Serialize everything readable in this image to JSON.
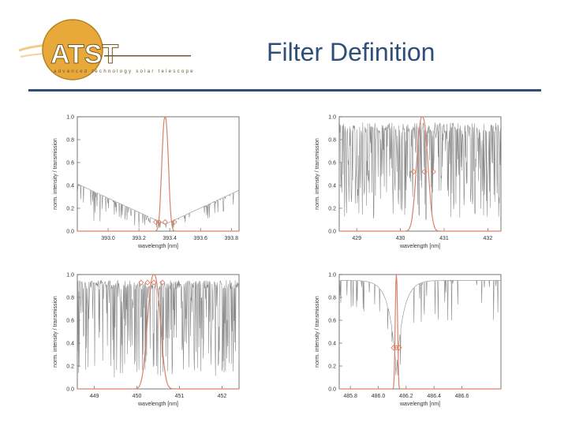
{
  "slide": {
    "title": "Filter Definition"
  },
  "logo": {
    "name": "ATST",
    "tagline": "advanced technology solar telescope"
  },
  "colors": {
    "title": "#2f4e7a",
    "rule": "#2f4e7a",
    "spectrum": "#8c8c8c",
    "filter": "#d9826a",
    "logo_gold": "#e8a83a",
    "logo_text": "#6b5a2a"
  },
  "chart_data": [
    {
      "type": "line",
      "panel": "top-left",
      "xlabel": "wavelength [nm]",
      "ylabel": "norm. intensity / transmission",
      "xlim": [
        392.8,
        393.85
      ],
      "ylim": [
        0.0,
        1.0
      ],
      "xticks": [
        "393.0",
        "393.2",
        "393.4",
        "393.6",
        "393.8"
      ],
      "xtick_values": [
        393.0,
        393.2,
        393.4,
        393.6,
        393.8
      ],
      "yticks": [
        "0.0",
        "0.2",
        "0.4",
        "0.6",
        "0.8",
        "1.0"
      ],
      "filter_center": 393.37,
      "filter_fwhm": 0.05,
      "spectrum_style": "CaII-K absorption core",
      "markers": [
        393.31,
        393.33,
        393.37,
        393.43
      ],
      "marker_y": 0.08
    },
    {
      "type": "line",
      "panel": "top-right",
      "xlabel": "wavelength [nm]",
      "ylabel": "norm. intensity / transmission",
      "xlim": [
        428.6,
        432.3
      ],
      "ylim": [
        0.0,
        1.0
      ],
      "xticks": [
        "429",
        "430",
        "431",
        "432"
      ],
      "xtick_values": [
        429,
        430,
        431,
        432
      ],
      "yticks": [
        "0.0",
        "0.2",
        "0.4",
        "0.6",
        "0.8",
        "1.0"
      ],
      "filter_center": 430.5,
      "filter_fwhm": 0.3,
      "spectrum_style": "dense lines",
      "markers": [
        430.3,
        430.55,
        430.75
      ],
      "marker_y": 0.52
    },
    {
      "type": "line",
      "panel": "bottom-left",
      "xlabel": "wavelength [nm]",
      "ylabel": "norm. intensity / transmission",
      "xlim": [
        448.6,
        452.4
      ],
      "ylim": [
        0.0,
        1.0
      ],
      "xticks": [
        "449",
        "450",
        "451",
        "452"
      ],
      "xtick_values": [
        449,
        450,
        451,
        452
      ],
      "yticks": [
        "0.0",
        "0.2",
        "0.4",
        "0.6",
        "0.8",
        "1.0"
      ],
      "filter_center": 450.4,
      "filter_fwhm": 0.35,
      "spectrum_style": "dense lines high continuum",
      "markers": [
        450.1,
        450.25,
        450.4,
        450.6
      ],
      "marker_y": 0.93
    },
    {
      "type": "line",
      "panel": "bottom-right",
      "xlabel": "wavelength [nm]",
      "ylabel": "norm. intensity / transmission",
      "xlim": [
        485.72,
        486.88
      ],
      "ylim": [
        0.0,
        1.0
      ],
      "xticks": [
        "485.8",
        "486.0",
        "486.2",
        "486.4",
        "486.6"
      ],
      "xtick_values": [
        485.8,
        486.0,
        486.2,
        486.4,
        486.6
      ],
      "yticks": [
        "0.0",
        "0.2",
        "0.4",
        "0.6",
        "0.8",
        "1.0"
      ],
      "filter_center": 486.13,
      "filter_fwhm": 0.02,
      "spectrum_style": "H-beta broad wings",
      "markers": [
        486.11,
        486.13,
        486.15
      ],
      "marker_y": 0.36
    }
  ]
}
